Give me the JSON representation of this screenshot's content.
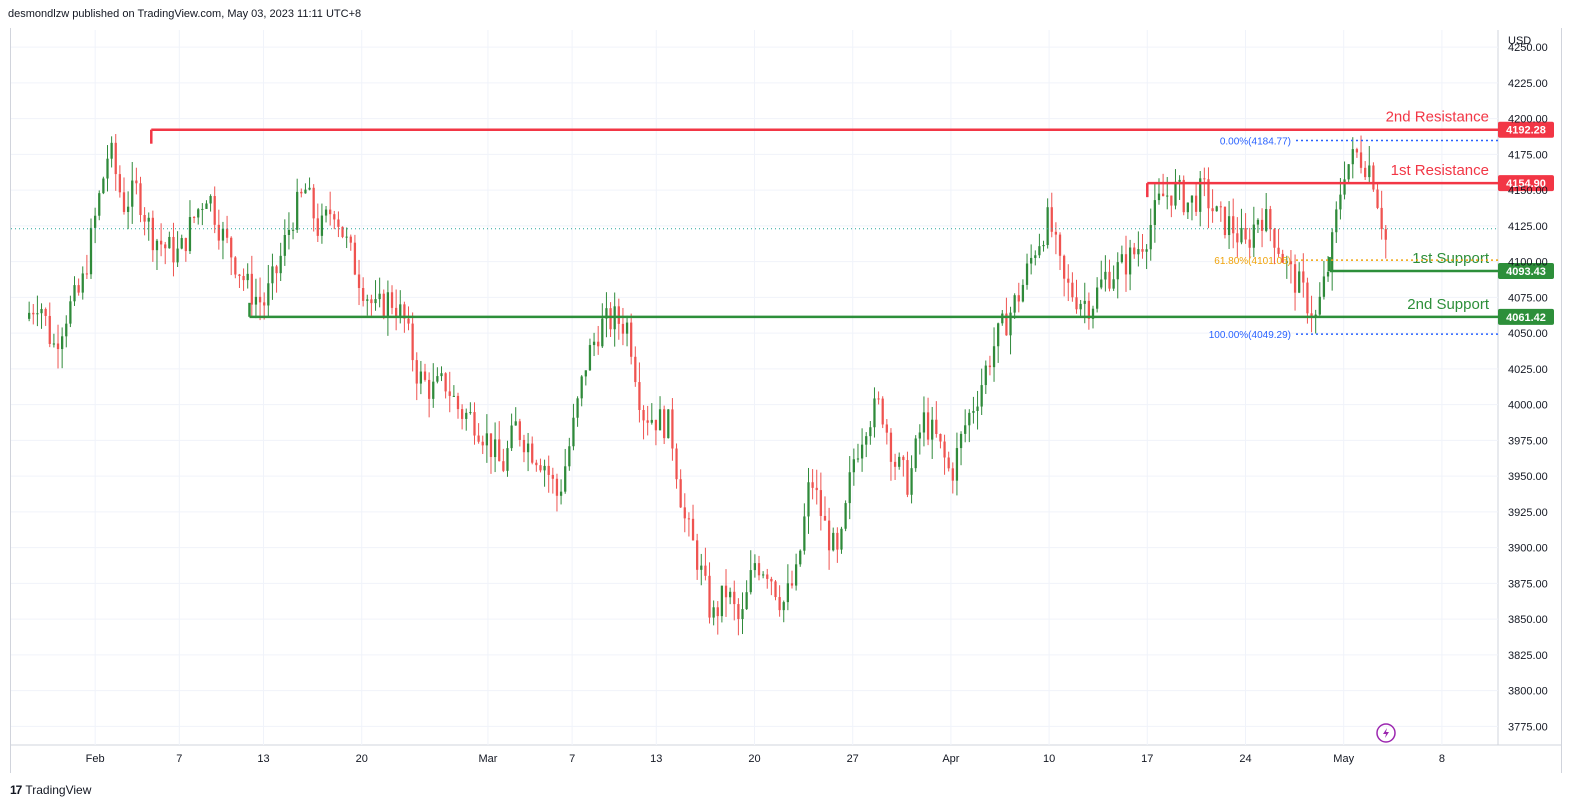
{
  "header": {
    "published_text": "desmondlzw published on TradingView.com, May 03, 2023 11:11 UTC+8"
  },
  "brand": {
    "name": "TradingView",
    "logo_glyph": "17"
  },
  "axis": {
    "currency": "USD"
  },
  "colors": {
    "up": "#2f8a3a",
    "down": "#ef5350",
    "resistance": "#f23645",
    "support": "#2d8f3a",
    "fib_blue": "#2962ff",
    "fib_gold": "#f0a30a",
    "grid": "#f0f3fa",
    "last_price": "#26a69a",
    "flash": "#9c27b0"
  },
  "chart_data": {
    "type": "candlestick",
    "title": "",
    "y_axis": {
      "label": "USD",
      "ylim": [
        3762,
        4262
      ],
      "ticks": [
        3775,
        3800,
        3825,
        3850,
        3875,
        3900,
        3925,
        3950,
        3975,
        4000,
        4025,
        4050,
        4075,
        4100,
        4125,
        4150,
        4175,
        4200,
        4225,
        4250
      ]
    },
    "x_axis": {
      "ticks": [
        {
          "label": "Feb",
          "date": "2023-02-01"
        },
        {
          "label": "7",
          "date": "2023-02-07"
        },
        {
          "label": "13",
          "date": "2023-02-13"
        },
        {
          "label": "20",
          "date": "2023-02-20"
        },
        {
          "label": "Mar",
          "date": "2023-03-01"
        },
        {
          "label": "7",
          "date": "2023-03-07"
        },
        {
          "label": "13",
          "date": "2023-03-13"
        },
        {
          "label": "20",
          "date": "2023-03-20"
        },
        {
          "label": "27",
          "date": "2023-03-27"
        },
        {
          "label": "Apr",
          "date": "2023-04-03"
        },
        {
          "label": "10",
          "date": "2023-04-10"
        },
        {
          "label": "17",
          "date": "2023-04-17"
        },
        {
          "label": "24",
          "date": "2023-04-24"
        },
        {
          "label": "May",
          "date": "2023-05-01"
        },
        {
          "label": "8",
          "date": "2023-05-08"
        }
      ]
    },
    "path": [
      [
        "2023-01-27",
        4060
      ],
      [
        "2023-01-28",
        4075
      ],
      [
        "2023-01-29",
        4040
      ],
      [
        "2023-01-30",
        4065
      ],
      [
        "2023-01-31",
        4080
      ],
      [
        "2023-02-01",
        4130
      ],
      [
        "2023-02-02",
        4180
      ],
      [
        "2023-02-03",
        4140
      ],
      [
        "2023-02-04",
        4150
      ],
      [
        "2023-02-05",
        4120
      ],
      [
        "2023-02-06",
        4110
      ],
      [
        "2023-02-07",
        4105
      ],
      [
        "2023-02-08",
        4130
      ],
      [
        "2023-02-09",
        4150
      ],
      [
        "2023-02-10",
        4120
      ],
      [
        "2023-02-11",
        4100
      ],
      [
        "2023-02-12",
        4080
      ],
      [
        "2023-02-13",
        4070
      ],
      [
        "2023-02-14",
        4095
      ],
      [
        "2023-02-15",
        4130
      ],
      [
        "2023-02-16",
        4150
      ],
      [
        "2023-02-17",
        4120
      ],
      [
        "2023-02-18",
        4140
      ],
      [
        "2023-02-19",
        4110
      ],
      [
        "2023-02-20",
        4085
      ],
      [
        "2023-02-21",
        4065
      ],
      [
        "2023-02-22",
        4075
      ],
      [
        "2023-02-23",
        4060
      ],
      [
        "2023-02-24",
        4020
      ],
      [
        "2023-02-25",
        4010
      ],
      [
        "2023-02-26",
        4015
      ],
      [
        "2023-02-27",
        3995
      ],
      [
        "2023-02-28",
        3990
      ],
      [
        "2023-03-01",
        3975
      ],
      [
        "2023-03-02",
        3955
      ],
      [
        "2023-03-03",
        3985
      ],
      [
        "2023-03-04",
        3970
      ],
      [
        "2023-03-05",
        3960
      ],
      [
        "2023-03-06",
        3935
      ],
      [
        "2023-03-07",
        3980
      ],
      [
        "2023-03-08",
        4030
      ],
      [
        "2023-03-09",
        4055
      ],
      [
        "2023-03-10",
        4060
      ],
      [
        "2023-03-11",
        4055
      ],
      [
        "2023-03-12",
        3995
      ],
      [
        "2023-03-13",
        3990
      ],
      [
        "2023-03-14",
        3985
      ],
      [
        "2023-03-15",
        3920
      ],
      [
        "2023-03-16",
        3890
      ],
      [
        "2023-03-17",
        3850
      ],
      [
        "2023-03-18",
        3870
      ],
      [
        "2023-03-19",
        3845
      ],
      [
        "2023-03-20",
        3890
      ],
      [
        "2023-03-21",
        3885
      ],
      [
        "2023-03-22",
        3860
      ],
      [
        "2023-03-23",
        3880
      ],
      [
        "2023-03-24",
        3950
      ],
      [
        "2023-03-25",
        3915
      ],
      [
        "2023-03-26",
        3890
      ],
      [
        "2023-03-27",
        3960
      ],
      [
        "2023-03-28",
        3990
      ],
      [
        "2023-03-29",
        4000
      ],
      [
        "2023-03-30",
        3960
      ],
      [
        "2023-03-31",
        3945
      ],
      [
        "2023-04-01",
        3990
      ],
      [
        "2023-04-02",
        3975
      ],
      [
        "2023-04-03",
        3950
      ],
      [
        "2023-04-04",
        3985
      ],
      [
        "2023-04-05",
        4010
      ],
      [
        "2023-04-06",
        4040
      ],
      [
        "2023-04-07",
        4060
      ],
      [
        "2023-04-08",
        4080
      ],
      [
        "2023-04-09",
        4110
      ],
      [
        "2023-04-10",
        4130
      ],
      [
        "2023-04-11",
        4085
      ],
      [
        "2023-04-12",
        4075
      ],
      [
        "2023-04-13",
        4070
      ],
      [
        "2023-04-14",
        4090
      ],
      [
        "2023-04-15",
        4095
      ],
      [
        "2023-04-16",
        4105
      ],
      [
        "2023-04-17",
        4120
      ],
      [
        "2023-04-18",
        4145
      ],
      [
        "2023-04-19",
        4150
      ],
      [
        "2023-04-20",
        4140
      ],
      [
        "2023-04-21",
        4150
      ],
      [
        "2023-04-22",
        4130
      ],
      [
        "2023-04-23",
        4125
      ],
      [
        "2023-04-24",
        4110
      ],
      [
        "2023-04-25",
        4135
      ],
      [
        "2023-04-26",
        4120
      ],
      [
        "2023-04-27",
        4095
      ],
      [
        "2023-04-28",
        4080
      ],
      [
        "2023-04-29",
        4060
      ],
      [
        "2023-04-30",
        4100
      ],
      [
        "2023-05-01",
        4165
      ],
      [
        "2023-05-02",
        4175
      ],
      [
        "2023-05-03",
        4165
      ],
      [
        "2023-05-04",
        4115
      ]
    ],
    "levels": [
      {
        "label": "2nd Resistance",
        "value": 4192.28,
        "value_text": "4192.28",
        "kind": "resistance",
        "from": "2023-02-05"
      },
      {
        "label": "1st Resistance",
        "value": 4154.9,
        "value_text": "4154.90",
        "kind": "resistance",
        "from": "2023-04-17"
      },
      {
        "label": "1st Support",
        "value": 4093.43,
        "value_text": "4093.43",
        "kind": "support",
        "from": "2023-04-30"
      },
      {
        "label": "2nd Support",
        "value": 4061.42,
        "value_text": "4061.42",
        "kind": "support",
        "from": "2023-02-12"
      }
    ],
    "fibonacci": [
      {
        "label": "0.00%(4184.77)",
        "value": 4184.77,
        "color": "fib_blue"
      },
      {
        "label": "61.80%(4101.05)",
        "value": 4101.05,
        "color": "fib_gold"
      },
      {
        "label": "100.00%(4049.29)",
        "value": 4049.29,
        "color": "fib_blue"
      }
    ],
    "current_price_line": 4123
  }
}
